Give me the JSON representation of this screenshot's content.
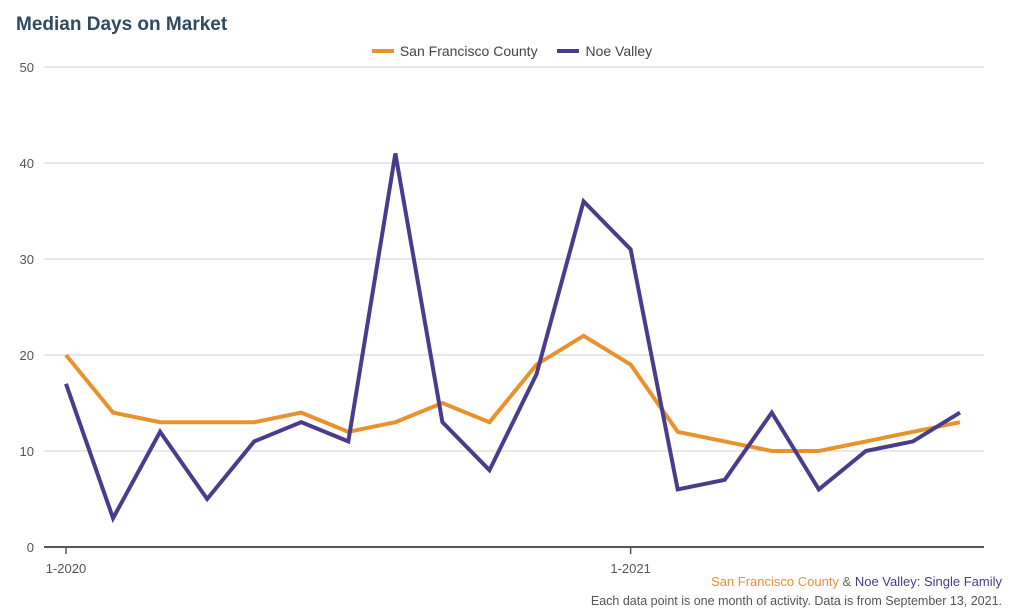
{
  "chart_data": {
    "type": "line",
    "title": "Median Days on Market",
    "ylim": [
      0,
      50
    ],
    "yticks": [
      0,
      10,
      20,
      30,
      40,
      50
    ],
    "x": [
      1,
      2,
      3,
      4,
      5,
      6,
      7,
      8,
      9,
      10,
      11,
      12,
      13,
      14,
      15,
      16,
      17,
      18,
      19,
      20
    ],
    "xticks": [
      {
        "x": 1,
        "label": "1-2020"
      },
      {
        "x": 13,
        "label": "1-2021"
      }
    ],
    "xlim": [
      1,
      20
    ],
    "grid": true,
    "legend_position": "top-center",
    "series": [
      {
        "name": "San Francisco County",
        "color": "#e8922e",
        "values": [
          20,
          14,
          13,
          13,
          13,
          14,
          12,
          13,
          15,
          13,
          19,
          22,
          19,
          12,
          11,
          10,
          10,
          11,
          12,
          13
        ]
      },
      {
        "name": "Noe Valley",
        "color": "#4b3b8c",
        "values": [
          17,
          3,
          12,
          5,
          11,
          13,
          11,
          41,
          13,
          8,
          18,
          36,
          31,
          6,
          7,
          14,
          6,
          10,
          11,
          14
        ]
      }
    ]
  },
  "footer": {
    "series1": "San Francisco County",
    "amp": " & ",
    "series2": "Noe Valley",
    "suffix": ": Single Family",
    "note": "Each data point is one month of activity. Data is from September 13, 2021."
  }
}
